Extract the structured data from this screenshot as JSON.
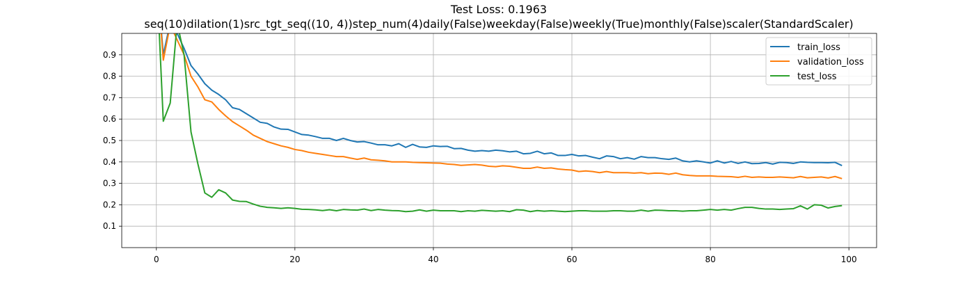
{
  "chart_data": {
    "type": "line",
    "title": "Test Loss: 0.1963",
    "subtitle": "seq(10)dilation(1)src_tgt_seq((10, 4))step_num(4)daily(False)weekday(False)weekly(True)monthly(False)scaler(StandardScaler)",
    "xlabel": "",
    "ylabel": "",
    "xlim": [
      -5,
      104
    ],
    "ylim": [
      0.0,
      1.0
    ],
    "xticks": [
      0,
      20,
      40,
      60,
      80,
      100
    ],
    "yticks": [
      0.1,
      0.2,
      0.3,
      0.4,
      0.5,
      0.6,
      0.7,
      0.8,
      0.9
    ],
    "grid": true,
    "legend_position": "top-right",
    "series": [
      {
        "name": "train_loss",
        "color": "#1f77b4",
        "x": [
          0,
          1,
          2,
          3,
          4,
          5,
          6,
          7,
          8,
          9,
          10,
          11,
          12,
          13,
          14,
          15,
          16,
          17,
          18,
          19,
          20,
          21,
          22,
          23,
          24,
          25,
          26,
          27,
          28,
          29,
          30,
          31,
          32,
          33,
          34,
          35,
          36,
          37,
          38,
          39,
          40,
          41,
          42,
          43,
          44,
          45,
          46,
          47,
          48,
          49,
          50,
          51,
          52,
          53,
          54,
          55,
          56,
          57,
          58,
          59,
          60,
          61,
          62,
          63,
          64,
          65,
          66,
          67,
          68,
          69,
          70,
          71,
          72,
          73,
          74,
          75,
          76,
          77,
          78,
          79,
          80,
          81,
          82,
          83,
          84,
          85,
          86,
          87,
          88,
          89,
          90,
          91,
          92,
          93,
          94,
          95,
          96,
          97,
          98,
          99
        ],
        "values": [
          1.3,
          0.9,
          1.05,
          1.0,
          0.93,
          0.85,
          0.81,
          0.765,
          0.735,
          0.715,
          0.69,
          0.653,
          0.645,
          0.625,
          0.605,
          0.585,
          0.58,
          0.563,
          0.553,
          0.552,
          0.54,
          0.528,
          0.525,
          0.518,
          0.51,
          0.51,
          0.5,
          0.51,
          0.5,
          0.493,
          0.495,
          0.488,
          0.48,
          0.48,
          0.475,
          0.485,
          0.468,
          0.482,
          0.47,
          0.468,
          0.475,
          0.472,
          0.473,
          0.462,
          0.463,
          0.455,
          0.45,
          0.453,
          0.45,
          0.455,
          0.452,
          0.447,
          0.45,
          0.438,
          0.44,
          0.45,
          0.438,
          0.442,
          0.43,
          0.43,
          0.435,
          0.428,
          0.43,
          0.422,
          0.415,
          0.428,
          0.425,
          0.415,
          0.42,
          0.413,
          0.425,
          0.42,
          0.42,
          0.415,
          0.412,
          0.418,
          0.405,
          0.4,
          0.405,
          0.4,
          0.395,
          0.405,
          0.395,
          0.402,
          0.393,
          0.4,
          0.392,
          0.393,
          0.397,
          0.39,
          0.398,
          0.397,
          0.393,
          0.4,
          0.398,
          0.397,
          0.397,
          0.396,
          0.398,
          0.383
        ]
      },
      {
        "name": "validation_loss",
        "color": "#ff7f0e",
        "x": [
          0,
          1,
          2,
          3,
          4,
          5,
          6,
          7,
          8,
          9,
          10,
          11,
          12,
          13,
          14,
          15,
          16,
          17,
          18,
          19,
          20,
          21,
          22,
          23,
          24,
          25,
          26,
          27,
          28,
          29,
          30,
          31,
          32,
          33,
          34,
          35,
          36,
          37,
          38,
          39,
          40,
          41,
          42,
          43,
          44,
          45,
          46,
          47,
          48,
          49,
          50,
          51,
          52,
          53,
          54,
          55,
          56,
          57,
          58,
          59,
          60,
          61,
          62,
          63,
          64,
          65,
          66,
          67,
          68,
          69,
          70,
          71,
          72,
          73,
          74,
          75,
          76,
          77,
          78,
          79,
          80,
          81,
          82,
          83,
          84,
          85,
          86,
          87,
          88,
          89,
          90,
          91,
          92,
          93,
          94,
          95,
          96,
          97,
          98,
          99
        ],
        "values": [
          1.3,
          0.875,
          1.04,
          0.97,
          0.9,
          0.8,
          0.75,
          0.69,
          0.68,
          0.645,
          0.615,
          0.588,
          0.568,
          0.548,
          0.525,
          0.51,
          0.495,
          0.485,
          0.475,
          0.468,
          0.458,
          0.453,
          0.445,
          0.44,
          0.435,
          0.43,
          0.425,
          0.425,
          0.418,
          0.412,
          0.418,
          0.41,
          0.408,
          0.405,
          0.4,
          0.4,
          0.4,
          0.398,
          0.397,
          0.396,
          0.395,
          0.394,
          0.39,
          0.388,
          0.384,
          0.386,
          0.388,
          0.385,
          0.38,
          0.378,
          0.382,
          0.38,
          0.375,
          0.37,
          0.37,
          0.376,
          0.37,
          0.372,
          0.367,
          0.364,
          0.362,
          0.355,
          0.358,
          0.355,
          0.35,
          0.355,
          0.35,
          0.35,
          0.35,
          0.348,
          0.35,
          0.345,
          0.348,
          0.347,
          0.342,
          0.348,
          0.34,
          0.337,
          0.335,
          0.335,
          0.335,
          0.333,
          0.332,
          0.331,
          0.328,
          0.333,
          0.328,
          0.33,
          0.328,
          0.328,
          0.33,
          0.328,
          0.326,
          0.332,
          0.326,
          0.328,
          0.33,
          0.325,
          0.332,
          0.322
        ]
      },
      {
        "name": "test_loss",
        "color": "#2ca02c",
        "x": [
          0,
          1,
          2,
          3,
          4,
          5,
          6,
          7,
          8,
          9,
          10,
          11,
          12,
          13,
          14,
          15,
          16,
          17,
          18,
          19,
          20,
          21,
          22,
          23,
          24,
          25,
          26,
          27,
          28,
          29,
          30,
          31,
          32,
          33,
          34,
          35,
          36,
          37,
          38,
          39,
          40,
          41,
          42,
          43,
          44,
          45,
          46,
          47,
          48,
          49,
          50,
          51,
          52,
          53,
          54,
          55,
          56,
          57,
          58,
          59,
          60,
          61,
          62,
          63,
          64,
          65,
          66,
          67,
          68,
          69,
          70,
          71,
          72,
          73,
          74,
          75,
          76,
          77,
          78,
          79,
          80,
          81,
          82,
          83,
          84,
          85,
          86,
          87,
          88,
          89,
          90,
          91,
          92,
          93,
          94,
          95,
          96,
          97,
          98,
          99
        ],
        "values": [
          1.3,
          0.59,
          0.675,
          1.05,
          0.9,
          0.54,
          0.39,
          0.255,
          0.235,
          0.27,
          0.255,
          0.222,
          0.216,
          0.215,
          0.203,
          0.193,
          0.188,
          0.186,
          0.183,
          0.186,
          0.183,
          0.179,
          0.178,
          0.176,
          0.173,
          0.177,
          0.172,
          0.178,
          0.176,
          0.175,
          0.18,
          0.173,
          0.178,
          0.175,
          0.173,
          0.172,
          0.168,
          0.17,
          0.176,
          0.17,
          0.175,
          0.172,
          0.172,
          0.172,
          0.168,
          0.172,
          0.17,
          0.174,
          0.172,
          0.17,
          0.172,
          0.168,
          0.177,
          0.175,
          0.168,
          0.173,
          0.17,
          0.172,
          0.17,
          0.168,
          0.17,
          0.172,
          0.172,
          0.17,
          0.17,
          0.17,
          0.172,
          0.172,
          0.17,
          0.17,
          0.175,
          0.17,
          0.175,
          0.174,
          0.172,
          0.172,
          0.17,
          0.172,
          0.172,
          0.175,
          0.178,
          0.175,
          0.178,
          0.175,
          0.182,
          0.188,
          0.188,
          0.183,
          0.18,
          0.18,
          0.178,
          0.18,
          0.182,
          0.195,
          0.18,
          0.2,
          0.198,
          0.185,
          0.192,
          0.196
        ]
      }
    ]
  }
}
